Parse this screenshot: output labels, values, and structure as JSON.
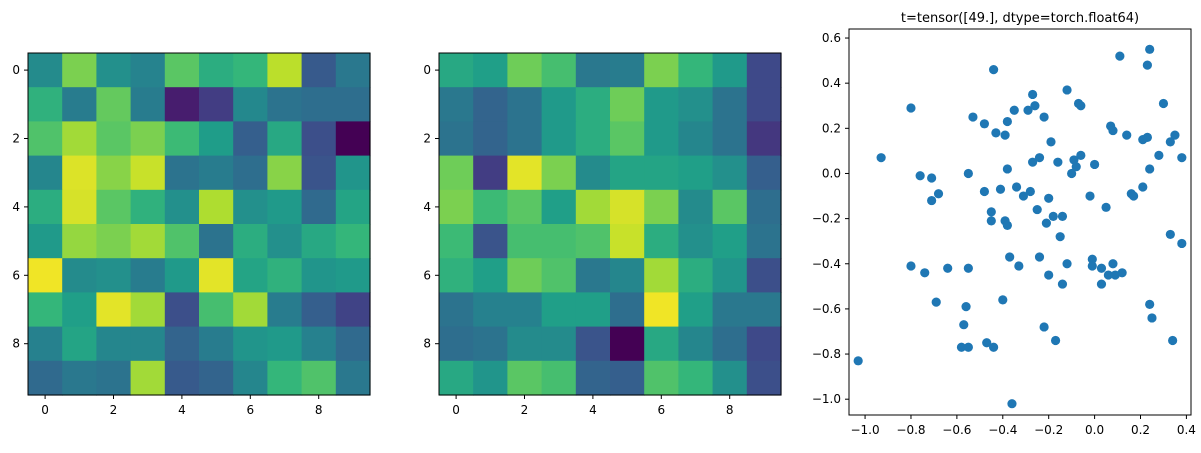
{
  "figure": {
    "background": "#ffffff"
  },
  "chart_data": [
    {
      "type": "heatmap",
      "colormap": "viridis",
      "title": "",
      "xlabel": "",
      "ylabel": "",
      "rows": 10,
      "cols": 10,
      "x_ticks": [
        0,
        2,
        4,
        6,
        8
      ],
      "y_ticks": [
        0,
        2,
        4,
        6,
        8
      ],
      "vmin": 0,
      "vmax": 1,
      "values": [
        [
          0.48,
          0.8,
          0.5,
          0.45,
          0.74,
          0.62,
          0.66,
          0.9,
          0.28,
          0.4
        ],
        [
          0.64,
          0.42,
          0.76,
          0.42,
          0.08,
          0.18,
          0.47,
          0.38,
          0.36,
          0.36
        ],
        [
          0.72,
          0.86,
          0.74,
          0.8,
          0.68,
          0.55,
          0.3,
          0.6,
          0.24,
          0.0
        ],
        [
          0.46,
          0.95,
          0.82,
          0.92,
          0.38,
          0.42,
          0.36,
          0.82,
          0.26,
          0.52
        ],
        [
          0.62,
          0.94,
          0.74,
          0.64,
          0.5,
          0.88,
          0.5,
          0.54,
          0.34,
          0.58
        ],
        [
          0.54,
          0.84,
          0.8,
          0.86,
          0.72,
          0.38,
          0.62,
          0.5,
          0.6,
          0.66
        ],
        [
          0.98,
          0.48,
          0.5,
          0.42,
          0.54,
          0.96,
          0.58,
          0.64,
          0.52,
          0.54
        ],
        [
          0.66,
          0.56,
          0.96,
          0.86,
          0.24,
          0.7,
          0.86,
          0.42,
          0.3,
          0.2
        ],
        [
          0.44,
          0.58,
          0.46,
          0.46,
          0.32,
          0.42,
          0.52,
          0.54,
          0.44,
          0.34
        ],
        [
          0.34,
          0.4,
          0.38,
          0.86,
          0.28,
          0.32,
          0.46,
          0.66,
          0.72,
          0.4
        ]
      ]
    },
    {
      "type": "heatmap",
      "colormap": "viridis",
      "title": "",
      "xlabel": "",
      "ylabel": "",
      "rows": 10,
      "cols": 10,
      "x_ticks": [
        0,
        2,
        4,
        6,
        8
      ],
      "y_ticks": [
        0,
        2,
        4,
        6,
        8
      ],
      "vmin": 0,
      "vmax": 1,
      "values": [
        [
          0.6,
          0.56,
          0.78,
          0.7,
          0.4,
          0.42,
          0.8,
          0.66,
          0.54,
          0.22
        ],
        [
          0.4,
          0.32,
          0.38,
          0.54,
          0.62,
          0.78,
          0.54,
          0.5,
          0.38,
          0.22
        ],
        [
          0.38,
          0.32,
          0.38,
          0.54,
          0.62,
          0.74,
          0.54,
          0.46,
          0.38,
          0.16
        ],
        [
          0.78,
          0.18,
          0.96,
          0.8,
          0.48,
          0.58,
          0.58,
          0.56,
          0.5,
          0.3
        ],
        [
          0.8,
          0.68,
          0.74,
          0.56,
          0.86,
          0.94,
          0.8,
          0.48,
          0.74,
          0.36
        ],
        [
          0.68,
          0.26,
          0.7,
          0.7,
          0.72,
          0.92,
          0.62,
          0.5,
          0.56,
          0.38
        ],
        [
          0.64,
          0.56,
          0.78,
          0.72,
          0.4,
          0.46,
          0.86,
          0.62,
          0.52,
          0.24
        ],
        [
          0.38,
          0.44,
          0.44,
          0.56,
          0.56,
          0.36,
          0.98,
          0.56,
          0.4,
          0.4
        ],
        [
          0.36,
          0.38,
          0.48,
          0.48,
          0.26,
          0.0,
          0.6,
          0.46,
          0.36,
          0.22
        ],
        [
          0.6,
          0.52,
          0.74,
          0.7,
          0.32,
          0.3,
          0.72,
          0.66,
          0.5,
          0.24
        ]
      ]
    },
    {
      "type": "scatter",
      "title": "t=tensor([49.], dtype=torch.float64)",
      "xlabel": "",
      "ylabel": "",
      "xlim": [
        -1.07,
        0.42
      ],
      "ylim": [
        -1.07,
        0.64
      ],
      "x_ticks": [
        -1.0,
        -0.8,
        -0.6,
        -0.4,
        -0.2,
        0.0,
        0.2,
        0.4
      ],
      "x_tick_labels": [
        "−1.0",
        "−0.8",
        "−0.6",
        "−0.4",
        "−0.2",
        "0.0",
        "0.2",
        "0.4"
      ],
      "y_ticks": [
        -1.0,
        -0.8,
        -0.6,
        -0.4,
        -0.2,
        0.0,
        0.2,
        0.4,
        0.6
      ],
      "y_tick_labels": [
        "−1.0",
        "−0.8",
        "−0.6",
        "−0.4",
        "−0.2",
        "0.0",
        "0.2",
        "0.4",
        "0.6"
      ],
      "marker_color": "#1f77b4",
      "grid": false,
      "points": [
        [
          -1.03,
          -0.83
        ],
        [
          -0.93,
          0.07
        ],
        [
          -0.8,
          0.29
        ],
        [
          -0.8,
          -0.41
        ],
        [
          -0.76,
          -0.01
        ],
        [
          -0.74,
          -0.44
        ],
        [
          -0.71,
          -0.02
        ],
        [
          -0.71,
          -0.12
        ],
        [
          -0.68,
          -0.09
        ],
        [
          -0.69,
          -0.57
        ],
        [
          -0.64,
          -0.42
        ],
        [
          -0.58,
          -0.77
        ],
        [
          -0.57,
          -0.67
        ],
        [
          -0.56,
          -0.59
        ],
        [
          -0.55,
          -0.77
        ],
        [
          -0.55,
          0.0
        ],
        [
          -0.55,
          -0.42
        ],
        [
          -0.53,
          0.25
        ],
        [
          -0.48,
          0.22
        ],
        [
          -0.48,
          -0.08
        ],
        [
          -0.47,
          -0.75
        ],
        [
          -0.45,
          -0.17
        ],
        [
          -0.45,
          -0.21
        ],
        [
          -0.44,
          -0.77
        ],
        [
          -0.44,
          0.46
        ],
        [
          -0.43,
          0.18
        ],
        [
          -0.41,
          -0.07
        ],
        [
          -0.4,
          -0.56
        ],
        [
          -0.39,
          0.17
        ],
        [
          -0.39,
          -0.21
        ],
        [
          -0.38,
          0.23
        ],
        [
          -0.38,
          -0.23
        ],
        [
          -0.38,
          0.02
        ],
        [
          -0.37,
          -0.37
        ],
        [
          -0.36,
          -1.02
        ],
        [
          -0.35,
          0.28
        ],
        [
          -0.34,
          -0.06
        ],
        [
          -0.33,
          -0.41
        ],
        [
          -0.31,
          -0.1
        ],
        [
          -0.29,
          0.28
        ],
        [
          -0.28,
          -0.08
        ],
        [
          -0.27,
          0.05
        ],
        [
          -0.27,
          0.35
        ],
        [
          -0.26,
          0.3
        ],
        [
          -0.25,
          -0.16
        ],
        [
          -0.24,
          0.07
        ],
        [
          -0.24,
          -0.37
        ],
        [
          -0.22,
          0.25
        ],
        [
          -0.22,
          -0.68
        ],
        [
          -0.21,
          -0.22
        ],
        [
          -0.2,
          -0.11
        ],
        [
          -0.2,
          -0.45
        ],
        [
          -0.19,
          0.14
        ],
        [
          -0.18,
          -0.19
        ],
        [
          -0.17,
          -0.74
        ],
        [
          -0.16,
          0.05
        ],
        [
          -0.15,
          -0.28
        ],
        [
          -0.14,
          -0.19
        ],
        [
          -0.14,
          -0.49
        ],
        [
          -0.12,
          0.37
        ],
        [
          -0.12,
          -0.4
        ],
        [
          -0.1,
          0.0
        ],
        [
          -0.09,
          0.06
        ],
        [
          -0.08,
          0.03
        ],
        [
          -0.07,
          0.31
        ],
        [
          -0.06,
          0.3
        ],
        [
          -0.06,
          0.08
        ],
        [
          -0.02,
          -0.1
        ],
        [
          -0.01,
          -0.38
        ],
        [
          -0.01,
          -0.41
        ],
        [
          0.0,
          0.04
        ],
        [
          0.03,
          -0.42
        ],
        [
          0.03,
          -0.49
        ],
        [
          0.05,
          -0.15
        ],
        [
          0.06,
          -0.45
        ],
        [
          0.07,
          0.21
        ],
        [
          0.08,
          0.19
        ],
        [
          0.08,
          -0.4
        ],
        [
          0.09,
          -0.45
        ],
        [
          0.11,
          0.52
        ],
        [
          0.12,
          -0.44
        ],
        [
          0.14,
          0.17
        ],
        [
          0.16,
          -0.09
        ],
        [
          0.17,
          -0.1
        ],
        [
          0.21,
          -0.06
        ],
        [
          0.21,
          0.15
        ],
        [
          0.23,
          0.16
        ],
        [
          0.23,
          0.48
        ],
        [
          0.24,
          0.55
        ],
        [
          0.24,
          -0.58
        ],
        [
          0.25,
          -0.64
        ],
        [
          0.24,
          0.02
        ],
        [
          0.28,
          0.08
        ],
        [
          0.3,
          0.31
        ],
        [
          0.33,
          0.14
        ],
        [
          0.33,
          -0.27
        ],
        [
          0.34,
          -0.74
        ],
        [
          0.35,
          0.17
        ],
        [
          0.38,
          0.07
        ],
        [
          0.38,
          -0.31
        ]
      ]
    }
  ]
}
